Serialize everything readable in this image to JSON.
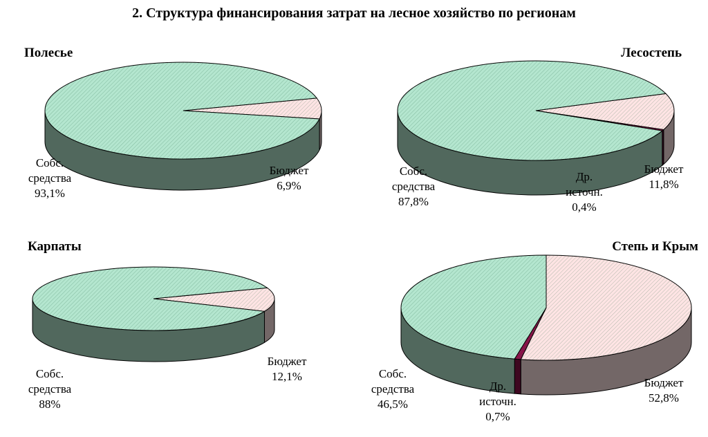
{
  "title": "2. Структура финансирования затрат на лесное хозяйство по регионам",
  "chart_data": [
    {
      "type": "pie",
      "title": "Полесье",
      "categories": [
        "Собс. средства",
        "Бюджет"
      ],
      "values": [
        93.1,
        6.9
      ],
      "value_labels": [
        "93,1%",
        "6,9%"
      ],
      "colors": [
        "#b4e6cf",
        "#ffe4e4"
      ]
    },
    {
      "type": "pie",
      "title": "Лесостепь",
      "categories": [
        "Собс. средства",
        "Др. источн.",
        "Бюджет"
      ],
      "values": [
        87.8,
        0.4,
        11.8
      ],
      "value_labels": [
        "87,8%",
        "0,4%",
        "11,8%"
      ],
      "colors": [
        "#b4e6cf",
        "#8a1048",
        "#ffe4e4"
      ]
    },
    {
      "type": "pie",
      "title": "Карпаты",
      "categories": [
        "Собс. средства",
        "Бюджет"
      ],
      "values": [
        88,
        12.1
      ],
      "value_labels": [
        "88%",
        "12,1%"
      ],
      "colors": [
        "#b4e6cf",
        "#ffe4e4"
      ]
    },
    {
      "type": "pie",
      "title": "Степь и  Крым",
      "categories": [
        "Собс. средства",
        "Др. источн.",
        "Бюджет"
      ],
      "values": [
        46.5,
        0.7,
        52.8
      ],
      "value_labels": [
        "46,5%",
        "0,7%",
        "52,8%"
      ],
      "colors": [
        "#b4e6cf",
        "#8a1048",
        "#ffe4e4"
      ]
    }
  ]
}
